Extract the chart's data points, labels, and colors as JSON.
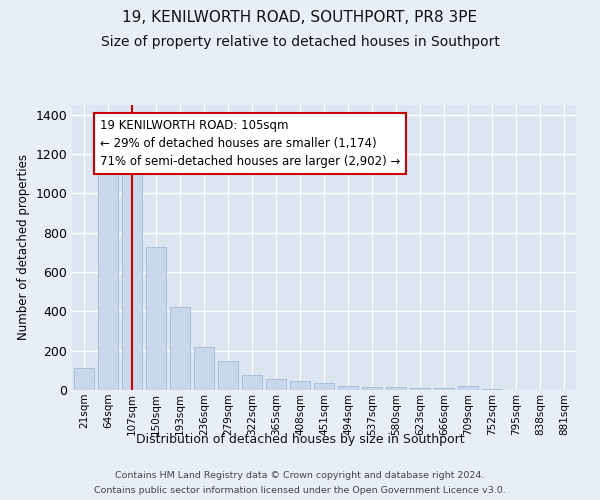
{
  "title": "19, KENILWORTH ROAD, SOUTHPORT, PR8 3PE",
  "subtitle": "Size of property relative to detached houses in Southport",
  "xlabel": "Distribution of detached houses by size in Southport",
  "ylabel": "Number of detached properties",
  "footer_line1": "Contains HM Land Registry data © Crown copyright and database right 2024.",
  "footer_line2": "Contains public sector information licensed under the Open Government Licence v3.0.",
  "categories": [
    "21sqm",
    "64sqm",
    "107sqm",
    "150sqm",
    "193sqm",
    "236sqm",
    "279sqm",
    "322sqm",
    "365sqm",
    "408sqm",
    "451sqm",
    "494sqm",
    "537sqm",
    "580sqm",
    "623sqm",
    "666sqm",
    "709sqm",
    "752sqm",
    "795sqm",
    "838sqm",
    "881sqm"
  ],
  "values": [
    110,
    1160,
    1150,
    730,
    420,
    220,
    150,
    78,
    55,
    48,
    35,
    20,
    16,
    14,
    10,
    8,
    20,
    3,
    2,
    2,
    2
  ],
  "bar_color": "#c8d8ea",
  "bar_edge_color": "#a8c0d8",
  "marker_bar_index": 2,
  "marker_color": "#cc0000",
  "annotation_text": "19 KENILWORTH ROAD: 105sqm\n← 29% of detached houses are smaller (1,174)\n71% of semi-detached houses are larger (2,902) →",
  "annotation_box_color": "#ffffff",
  "annotation_box_edge": "#cc0000",
  "bg_color": "#e8eef5",
  "plot_bg_color": "#dce6f0",
  "grid_color": "#ffffff",
  "ylim": [
    0,
    1450
  ],
  "title_fontsize": 11,
  "subtitle_fontsize": 10
}
